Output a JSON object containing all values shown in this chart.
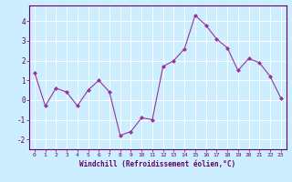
{
  "x": [
    0,
    1,
    2,
    3,
    4,
    5,
    6,
    7,
    8,
    9,
    10,
    11,
    12,
    13,
    14,
    15,
    16,
    17,
    18,
    19,
    20,
    21,
    22,
    23
  ],
  "y": [
    1.4,
    -0.3,
    0.6,
    0.4,
    -0.3,
    0.5,
    1.0,
    0.4,
    -1.8,
    -1.6,
    -0.9,
    -1.0,
    1.7,
    2.0,
    2.6,
    4.3,
    3.8,
    3.1,
    2.65,
    1.5,
    2.1,
    1.9,
    1.2,
    0.1
  ],
  "line_color": "#993399",
  "marker": "D",
  "marker_size": 2.0,
  "bg_color": "#cceeff",
  "grid_color": "#ffffff",
  "axis_color": "#660066",
  "tick_color": "#660066",
  "xlabel": "Windchill (Refroidissement éolien,°C)",
  "ylim": [
    -2.5,
    4.8
  ],
  "xlim": [
    -0.5,
    23.5
  ],
  "yticks": [
    -2,
    -1,
    0,
    1,
    2,
    3,
    4
  ],
  "xticks": [
    0,
    1,
    2,
    3,
    4,
    5,
    6,
    7,
    8,
    9,
    10,
    11,
    12,
    13,
    14,
    15,
    16,
    17,
    18,
    19,
    20,
    21,
    22,
    23
  ]
}
